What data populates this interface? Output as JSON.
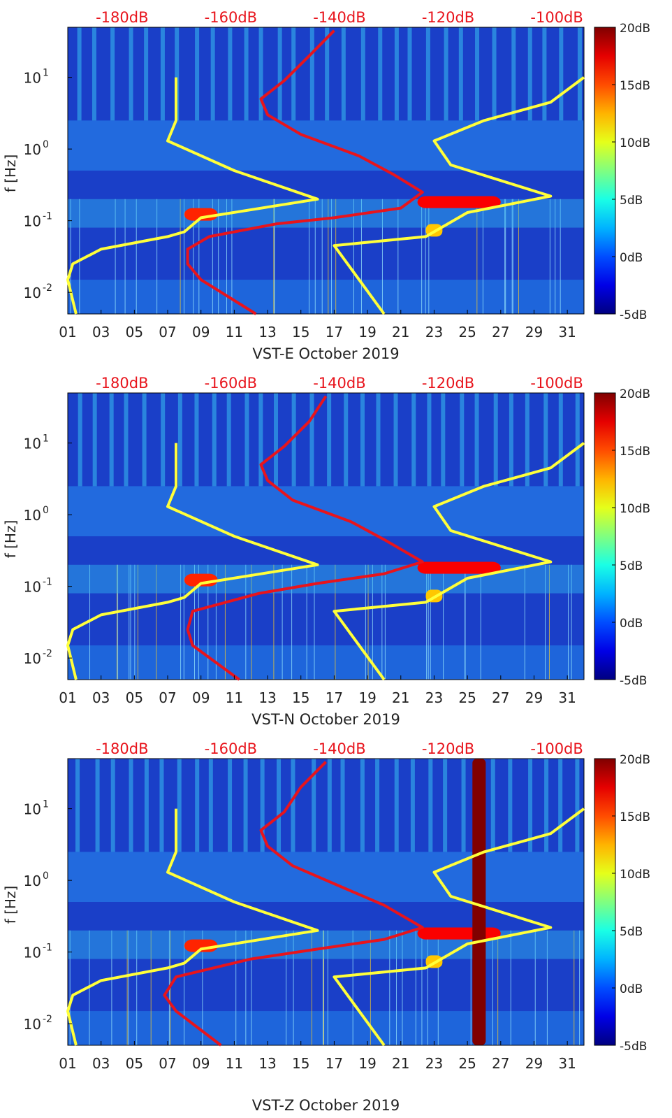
{
  "figure": {
    "colors": {
      "background": "#ffffff",
      "psd_curve": "#e8141c",
      "noise_model": "#ffff3a",
      "top_axis_text": "#e8141c"
    }
  },
  "chart_data": [
    {
      "type": "heatmap",
      "title": "",
      "xlabel": "VST-E October 2019",
      "ylabel": "f [Hz]",
      "x_ticks": [
        "01",
        "03",
        "05",
        "07",
        "09",
        "11",
        "13",
        "15",
        "17",
        "19",
        "21",
        "23",
        "25",
        "27",
        "29",
        "31"
      ],
      "xlim": [
        1,
        32
      ],
      "y_scale": "log",
      "ylim": [
        0.005,
        50
      ],
      "y_ticks": [
        "10-2",
        "10-1",
        "100",
        "101"
      ],
      "top_ticks": [
        "-180dB",
        "-160dB",
        "-140dB",
        "-120dB",
        "-100dB"
      ],
      "top_range_db": [
        -190,
        -95
      ],
      "colorbar": {
        "range": [
          -5,
          20
        ],
        "ticks": [
          "20dB",
          "15dB",
          "10dB",
          "5dB",
          "0dB",
          "-5dB"
        ],
        "colormap": "jet"
      },
      "highlights": [
        {
          "x": [
            8,
            10
          ],
          "f": [
            0.1,
            0.15
          ],
          "level": 16
        },
        {
          "x": [
            22,
            27
          ],
          "f": [
            0.15,
            0.22
          ],
          "level": 17
        },
        {
          "x": [
            22.5,
            23.5
          ],
          "f": [
            0.06,
            0.09
          ],
          "level": 12
        }
      ],
      "series": [
        {
          "kind": "line",
          "color": "yellow",
          "points": [
            [
              1.5,
              0.005
            ],
            [
              1.0,
              0.015
            ],
            [
              1.3,
              0.025
            ],
            [
              3,
              0.04
            ],
            [
              7,
              0.06
            ],
            [
              8,
              0.07
            ],
            [
              9,
              0.11
            ],
            [
              16,
              0.2
            ],
            [
              11,
              0.5
            ],
            [
              7,
              1.3
            ],
            [
              7.5,
              2.5
            ],
            [
              7.5,
              10
            ]
          ]
        },
        {
          "kind": "line",
          "color": "yellow",
          "points": [
            [
              20,
              0.005
            ],
            [
              17,
              0.045
            ],
            [
              22.5,
              0.06
            ],
            [
              25,
              0.13
            ],
            [
              30,
              0.22
            ],
            [
              24,
              0.6
            ],
            [
              23,
              1.3
            ],
            [
              26,
              2.5
            ],
            [
              30,
              4.5
            ],
            [
              32,
              10
            ]
          ]
        },
        {
          "kind": "line",
          "color": "red",
          "points": [
            [
              12.3,
              0.005
            ],
            [
              9,
              0.015
            ],
            [
              8.2,
              0.025
            ],
            [
              8.2,
              0.04
            ],
            [
              9.5,
              0.06
            ],
            [
              13.5,
              0.09
            ],
            [
              17,
              0.11
            ],
            [
              21,
              0.15
            ],
            [
              22.3,
              0.25
            ],
            [
              20.5,
              0.45
            ],
            [
              18.5,
              0.8
            ],
            [
              15,
              1.6
            ],
            [
              13,
              3
            ],
            [
              12.6,
              5
            ],
            [
              14,
              9
            ],
            [
              15.5,
              20
            ],
            [
              17,
              45
            ]
          ]
        }
      ]
    },
    {
      "type": "heatmap",
      "title": "",
      "xlabel": "VST-N October 2019",
      "ylabel": "f [Hz]",
      "x_ticks": [
        "01",
        "03",
        "05",
        "07",
        "09",
        "11",
        "13",
        "15",
        "17",
        "19",
        "21",
        "23",
        "25",
        "27",
        "29",
        "31"
      ],
      "xlim": [
        1,
        32
      ],
      "y_scale": "log",
      "ylim": [
        0.005,
        50
      ],
      "y_ticks": [
        "10-2",
        "10-1",
        "100",
        "101"
      ],
      "top_ticks": [
        "-180dB",
        "-160dB",
        "-140dB",
        "-120dB",
        "-100dB"
      ],
      "top_range_db": [
        -190,
        -95
      ],
      "colorbar": {
        "range": [
          -5,
          20
        ],
        "ticks": [
          "20dB",
          "15dB",
          "10dB",
          "5dB",
          "0dB",
          "-5dB"
        ],
        "colormap": "jet"
      },
      "highlights": [
        {
          "x": [
            8,
            10
          ],
          "f": [
            0.1,
            0.15
          ],
          "level": 16
        },
        {
          "x": [
            22,
            27
          ],
          "f": [
            0.15,
            0.22
          ],
          "level": 17
        },
        {
          "x": [
            22.5,
            23.5
          ],
          "f": [
            0.06,
            0.09
          ],
          "level": 12
        }
      ],
      "series": [
        {
          "kind": "line",
          "color": "yellow",
          "points": [
            [
              1.5,
              0.005
            ],
            [
              1.0,
              0.015
            ],
            [
              1.3,
              0.025
            ],
            [
              3,
              0.04
            ],
            [
              7,
              0.06
            ],
            [
              8,
              0.07
            ],
            [
              9,
              0.11
            ],
            [
              16,
              0.2
            ],
            [
              11,
              0.5
            ],
            [
              7,
              1.3
            ],
            [
              7.5,
              2.5
            ],
            [
              7.5,
              10
            ]
          ]
        },
        {
          "kind": "line",
          "color": "yellow",
          "points": [
            [
              20,
              0.005
            ],
            [
              17,
              0.045
            ],
            [
              22.5,
              0.06
            ],
            [
              25,
              0.13
            ],
            [
              30,
              0.22
            ],
            [
              24,
              0.6
            ],
            [
              23,
              1.3
            ],
            [
              26,
              2.5
            ],
            [
              30,
              4.5
            ],
            [
              32,
              10
            ]
          ]
        },
        {
          "kind": "line",
          "color": "red",
          "points": [
            [
              11.3,
              0.005
            ],
            [
              8.5,
              0.015
            ],
            [
              8.2,
              0.025
            ],
            [
              8.5,
              0.045
            ],
            [
              12.5,
              0.08
            ],
            [
              16,
              0.11
            ],
            [
              20,
              0.15
            ],
            [
              22.3,
              0.22
            ],
            [
              20,
              0.45
            ],
            [
              18,
              0.8
            ],
            [
              14.5,
              1.6
            ],
            [
              13,
              3
            ],
            [
              12.6,
              5
            ],
            [
              14,
              9
            ],
            [
              15.5,
              20
            ],
            [
              16.5,
              45
            ]
          ]
        }
      ]
    },
    {
      "type": "heatmap",
      "title": "",
      "xlabel": "VST-Z October 2019",
      "ylabel": "f [Hz]",
      "x_ticks": [
        "01",
        "03",
        "05",
        "07",
        "09",
        "11",
        "13",
        "15",
        "17",
        "19",
        "21",
        "23",
        "25",
        "27",
        "29",
        "31"
      ],
      "xlim": [
        1,
        32
      ],
      "y_scale": "log",
      "ylim": [
        0.005,
        50
      ],
      "y_ticks": [
        "10-2",
        "10-1",
        "100",
        "101"
      ],
      "top_ticks": [
        "-180dB",
        "-160dB",
        "-140dB",
        "-120dB",
        "-100dB"
      ],
      "top_range_db": [
        -190,
        -95
      ],
      "colorbar": {
        "range": [
          -5,
          20
        ],
        "ticks": [
          "20dB",
          "15dB",
          "10dB",
          "5dB",
          "0dB",
          "-5dB"
        ],
        "colormap": "jet"
      },
      "highlights": [
        {
          "x": [
            8,
            10
          ],
          "f": [
            0.1,
            0.15
          ],
          "level": 16
        },
        {
          "x": [
            22,
            27
          ],
          "f": [
            0.15,
            0.22
          ],
          "level": 17
        },
        {
          "x": [
            22.5,
            23.5
          ],
          "f": [
            0.06,
            0.09
          ],
          "level": 12
        },
        {
          "x": [
            25.3,
            26.1
          ],
          "f": [
            0.005,
            50
          ],
          "level": 20
        }
      ],
      "series": [
        {
          "kind": "line",
          "color": "yellow",
          "points": [
            [
              1.5,
              0.005
            ],
            [
              1.0,
              0.015
            ],
            [
              1.3,
              0.025
            ],
            [
              3,
              0.04
            ],
            [
              7,
              0.06
            ],
            [
              8,
              0.07
            ],
            [
              9,
              0.11
            ],
            [
              16,
              0.2
            ],
            [
              11,
              0.5
            ],
            [
              7,
              1.3
            ],
            [
              7.5,
              2.5
            ],
            [
              7.5,
              10
            ]
          ]
        },
        {
          "kind": "line",
          "color": "yellow",
          "points": [
            [
              20,
              0.005
            ],
            [
              17,
              0.045
            ],
            [
              22.5,
              0.06
            ],
            [
              25,
              0.13
            ],
            [
              30,
              0.22
            ],
            [
              24,
              0.6
            ],
            [
              23,
              1.3
            ],
            [
              26,
              2.5
            ],
            [
              30,
              4.5
            ],
            [
              32,
              10
            ]
          ]
        },
        {
          "kind": "line",
          "color": "red",
          "points": [
            [
              10.2,
              0.005
            ],
            [
              7.5,
              0.015
            ],
            [
              6.8,
              0.025
            ],
            [
              7.5,
              0.045
            ],
            [
              12,
              0.08
            ],
            [
              16,
              0.11
            ],
            [
              20,
              0.15
            ],
            [
              22.3,
              0.22
            ],
            [
              20,
              0.45
            ],
            [
              17.5,
              0.8
            ],
            [
              14.5,
              1.6
            ],
            [
              13,
              3
            ],
            [
              12.6,
              5
            ],
            [
              14,
              9
            ],
            [
              15,
              20
            ],
            [
              16.5,
              45
            ]
          ]
        }
      ]
    }
  ]
}
